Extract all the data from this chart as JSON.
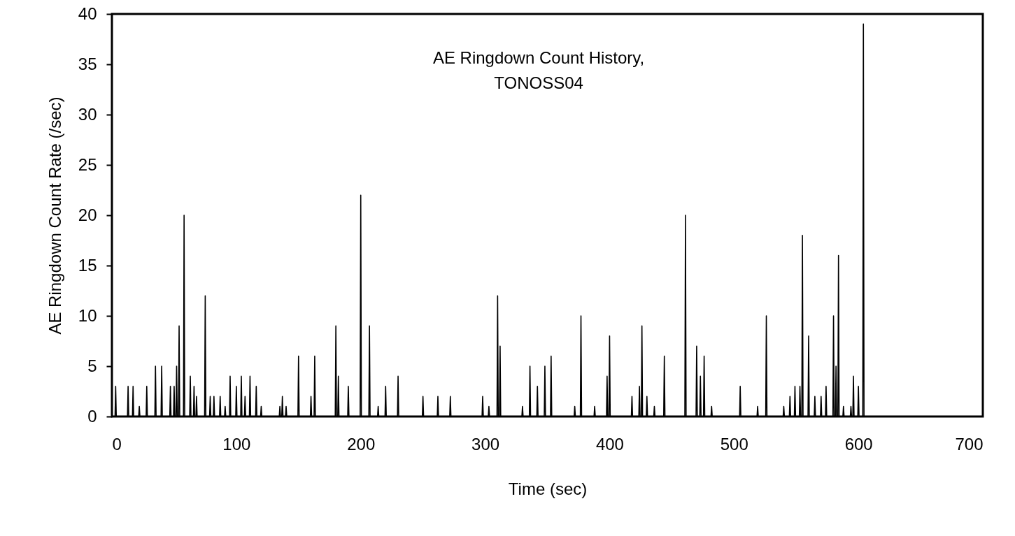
{
  "chart_data": {
    "type": "line",
    "title": "AE Ringdown Count History,\nTONOSS04",
    "xlabel": "Time (sec)",
    "ylabel": "AE Ringdown Count Rate (/sec)",
    "xlim": [
      0,
      700
    ],
    "xticks": [
      0,
      100,
      200,
      300,
      400,
      500,
      600,
      700
    ],
    "ylim": [
      0,
      40
    ],
    "yticks": [
      0,
      5,
      10,
      15,
      20,
      25,
      30,
      35,
      40
    ],
    "grid": false,
    "marker": "none",
    "line_style": "solid",
    "series": [
      {
        "color": "#000000",
        "x": [
          0,
          2.5,
          3,
          3.5,
          12.5,
          13,
          13.5,
          16.5,
          17,
          17.5,
          21.5,
          22,
          22.5,
          27.5,
          28,
          28.5,
          34.5,
          35,
          35.5,
          39.5,
          40,
          40.5,
          46.5,
          47,
          47.5,
          49.5,
          50,
          50.5,
          51.5,
          52,
          52.5,
          53.5,
          54,
          54.5,
          57.5,
          58,
          58.5,
          62.5,
          63,
          63.5,
          65.5,
          66,
          66.5,
          67.5,
          68,
          68.5,
          74.5,
          75,
          75.5,
          78.5,
          79,
          79.5,
          81.5,
          82,
          82.5,
          86.5,
          87,
          87.5,
          90.5,
          91,
          91.5,
          94.5,
          95,
          95.5,
          99.5,
          100,
          100.5,
          103.5,
          104,
          104.5,
          106.5,
          107,
          107.5,
          110.5,
          111,
          111.5,
          115.5,
          116,
          116.5,
          119.5,
          120,
          120.5,
          134.5,
          135,
          135.5,
          136.5,
          137,
          137.5,
          139.5,
          140,
          140.5,
          149.5,
          150,
          150.5,
          159.5,
          160,
          160.5,
          162.5,
          163,
          163.5,
          179.5,
          180,
          180.5,
          181.5,
          182,
          182.5,
          189.5,
          190,
          190.5,
          199.5,
          200,
          200.5,
          206.5,
          207,
          207.5,
          213.5,
          214,
          214.5,
          219.5,
          220,
          220.5,
          229.5,
          230,
          230.5,
          249.5,
          250,
          250.5,
          261.5,
          262,
          262.5,
          271.5,
          272,
          272.5,
          297.5,
          298,
          298.5,
          302.5,
          303,
          303.5,
          309.5,
          310,
          310.5,
          311.5,
          312,
          312.5,
          329.5,
          330,
          330.5,
          335.5,
          336,
          336.5,
          341.5,
          342,
          342.5,
          347.5,
          348,
          348.5,
          352.5,
          353,
          353.5,
          371.5,
          372,
          372.5,
          376.5,
          377,
          377.5,
          387.5,
          388,
          388.5,
          397.5,
          398,
          398.5,
          399.5,
          400,
          400.5,
          417.5,
          418,
          418.5,
          423.5,
          424,
          424.5,
          425.5,
          426,
          426.5,
          429.5,
          430,
          430.5,
          435.5,
          436,
          436.5,
          443.5,
          444,
          444.5,
          460.5,
          461,
          461.5,
          469.5,
          470,
          470.5,
          472.5,
          473,
          473.5,
          475.5,
          476,
          476.5,
          481.5,
          482,
          482.5,
          504.5,
          505,
          505.5,
          518.5,
          519,
          519.5,
          525.5,
          526,
          526.5,
          539.5,
          540,
          540.5,
          544.5,
          545,
          545.5,
          548.5,
          549,
          549.5,
          552.5,
          553,
          553.5,
          554.5,
          555,
          555.5,
          559.5,
          560,
          560.5,
          564.5,
          565,
          565.5,
          569.5,
          570,
          570.5,
          573.5,
          574,
          574.5,
          579.5,
          580,
          580.5,
          581.5,
          582,
          582.5,
          583.5,
          584,
          584.5,
          587.5,
          588,
          588.5,
          593.5,
          594,
          594.5,
          595.5,
          596,
          596.5,
          599.5,
          600,
          600.5,
          603.5,
          604,
          604.5,
          700
        ],
        "values": [
          0,
          0,
          3,
          0,
          0,
          3,
          0,
          0,
          3,
          0,
          0,
          1,
          0,
          0,
          3,
          0,
          0,
          5,
          0,
          0,
          5,
          0,
          0,
          3,
          0,
          0,
          3,
          0,
          0,
          5,
          0,
          0,
          9,
          0,
          0,
          20,
          0,
          0,
          4,
          0,
          0,
          3,
          0,
          0,
          2,
          0,
          0,
          12,
          0,
          0,
          2,
          0,
          0,
          2,
          0,
          0,
          2,
          0,
          0,
          1,
          0,
          0,
          4,
          0,
          0,
          3,
          0,
          0,
          4,
          0,
          0,
          2,
          0,
          0,
          4,
          0,
          0,
          3,
          0,
          0,
          1,
          0,
          0,
          1,
          0,
          0,
          2,
          0,
          0,
          1,
          0,
          0,
          6,
          0,
          0,
          2,
          0,
          0,
          6,
          0,
          0,
          9,
          0,
          0,
          4,
          0,
          0,
          3,
          0,
          0,
          22,
          0,
          0,
          9,
          0,
          0,
          1,
          0,
          0,
          3,
          0,
          0,
          4,
          0,
          0,
          2,
          0,
          0,
          2,
          0,
          0,
          2,
          0,
          0,
          2,
          0,
          0,
          1,
          0,
          0,
          12,
          0,
          0,
          7,
          0,
          0,
          1,
          0,
          0,
          5,
          0,
          0,
          3,
          0,
          0,
          5,
          0,
          0,
          6,
          0,
          0,
          1,
          0,
          0,
          10,
          0,
          0,
          1,
          0,
          0,
          4,
          0,
          0,
          8,
          0,
          0,
          2,
          0,
          0,
          3,
          0,
          0,
          9,
          0,
          0,
          2,
          0,
          0,
          1,
          0,
          0,
          6,
          0,
          0,
          20,
          0,
          0,
          7,
          0,
          0,
          4,
          0,
          0,
          6,
          0,
          0,
          1,
          0,
          0,
          3,
          0,
          0,
          1,
          0,
          0,
          10,
          0,
          0,
          1,
          0,
          0,
          2,
          0,
          0,
          3,
          0,
          0,
          3,
          0,
          0,
          18,
          0,
          0,
          8,
          0,
          0,
          2,
          0,
          0,
          2,
          0,
          0,
          3,
          0,
          0,
          10,
          0,
          0,
          5,
          0,
          0,
          16,
          0,
          0,
          1,
          0,
          0,
          1,
          0,
          0,
          4,
          0,
          0,
          3,
          0,
          0,
          39,
          0,
          0
        ]
      }
    ]
  }
}
